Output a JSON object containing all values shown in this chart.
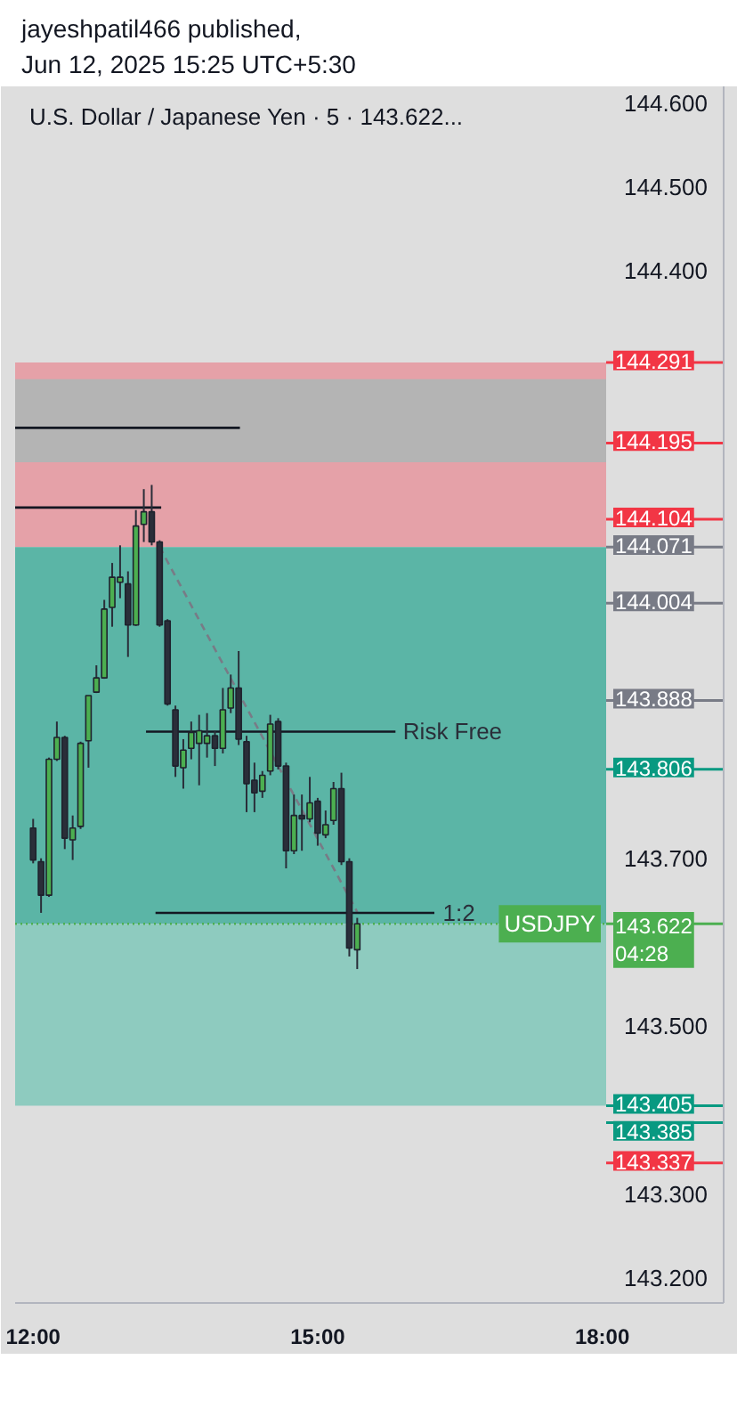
{
  "chart_data": {
    "type": "candlestick",
    "title": "U.S. Dollar / Japanese Yen · 5 · 143.622...",
    "annotations": [
      "jayeshpatil466 published,",
      "Jun 12, 2025 15:25 UTC+5:30",
      {
        "text": "Risk Free",
        "x": 15.9,
        "y": 143.851
      },
      {
        "text": "1:2",
        "x": 16.32,
        "y": 143.635
      }
    ],
    "x": [
      12.0,
      12.0833,
      12.1667,
      12.25,
      12.3333,
      12.4167,
      12.5,
      12.5833,
      12.6667,
      12.75,
      12.8333,
      12.9167,
      13.0,
      13.0833,
      13.1667,
      13.25,
      13.3333,
      13.4167,
      13.5,
      13.5833,
      13.6667,
      13.75,
      13.8333,
      13.9167,
      14.0,
      14.0833,
      14.1667,
      14.25,
      14.3333,
      14.4167,
      14.5,
      14.5833,
      14.6667,
      14.75,
      14.8333,
      14.9167,
      15.0,
      15.0833,
      15.1667,
      15.25,
      15.3333,
      15.4167
    ],
    "ohlc": [
      [
        143.736,
        143.747,
        143.694,
        143.698
      ],
      [
        143.696,
        143.7,
        143.635,
        143.656
      ],
      [
        143.656,
        143.82,
        143.654,
        143.818
      ],
      [
        143.818,
        143.863,
        143.816,
        143.844
      ],
      [
        143.844,
        143.846,
        143.711,
        143.724
      ],
      [
        143.722,
        143.751,
        143.698,
        143.736
      ],
      [
        143.738,
        143.839,
        143.735,
        143.837
      ],
      [
        143.84,
        143.894,
        143.808,
        143.894
      ],
      [
        143.898,
        143.93,
        143.897,
        143.915
      ],
      [
        143.915,
        144.008,
        143.914,
        143.997
      ],
      [
        143.999,
        144.052,
        143.976,
        144.035
      ],
      [
        144.029,
        144.073,
        144.01,
        144.035
      ],
      [
        144.027,
        144.042,
        143.94,
        143.978
      ],
      [
        143.978,
        144.115,
        143.977,
        144.096
      ],
      [
        144.098,
        144.14,
        144.077,
        144.113
      ],
      [
        144.113,
        144.145,
        144.073,
        144.077
      ],
      [
        144.077,
        144.079,
        143.976,
        143.978
      ],
      [
        143.983,
        143.985,
        143.882,
        143.884
      ],
      [
        143.877,
        143.882,
        143.797,
        143.81
      ],
      [
        143.808,
        143.842,
        143.783,
        143.829
      ],
      [
        143.831,
        143.863,
        143.818,
        143.85
      ],
      [
        143.837,
        143.871,
        143.787,
        143.852
      ],
      [
        143.837,
        143.873,
        143.82,
        143.846
      ],
      [
        143.846,
        143.852,
        143.81,
        143.831
      ],
      [
        143.831,
        143.903,
        143.825,
        143.877
      ],
      [
        143.879,
        143.919,
        143.873,
        143.903
      ],
      [
        143.903,
        143.947,
        143.835,
        143.842
      ],
      [
        143.839,
        143.846,
        143.755,
        143.789
      ],
      [
        143.793,
        143.814,
        143.755,
        143.778
      ],
      [
        143.78,
        143.804,
        143.772,
        143.799
      ],
      [
        143.804,
        143.871,
        143.799,
        143.86
      ],
      [
        143.863,
        143.867,
        143.806,
        143.81
      ],
      [
        143.81,
        143.814,
        143.688,
        143.709
      ],
      [
        143.709,
        143.776,
        143.705,
        143.751
      ],
      [
        143.751,
        143.776,
        143.709,
        143.747
      ],
      [
        143.747,
        143.797,
        143.743,
        143.766
      ],
      [
        143.768,
        143.772,
        143.715,
        143.73
      ],
      [
        143.728,
        143.757,
        143.724,
        143.74
      ],
      [
        143.745,
        143.791,
        143.74,
        143.783
      ],
      [
        143.783,
        143.802,
        143.692,
        143.696
      ],
      [
        143.696,
        143.7,
        143.583,
        143.593
      ],
      [
        143.591,
        143.629,
        143.568,
        143.622
      ]
    ],
    "colors": [
      "#2a2e39",
      "#2a2e39",
      "#4caf50",
      "#4caf50",
      "#2a2e39",
      "#4caf50",
      "#4caf50",
      "#4caf50",
      "#4caf50",
      "#4caf50",
      "#4caf50",
      "#4caf50",
      "#2a2e39",
      "#4caf50",
      "#4caf50",
      "#2a2e39",
      "#2a2e39",
      "#2a2e39",
      "#2a2e39",
      "#4caf50",
      "#4caf50",
      "#4caf50",
      "#4caf50",
      "#2a2e39",
      "#4caf50",
      "#4caf50",
      "#2a2e39",
      "#2a2e39",
      "#2a2e39",
      "#4caf50",
      "#4caf50",
      "#2a2e39",
      "#2a2e39",
      "#4caf50",
      "#2a2e39",
      "#4caf50",
      "#2a2e39",
      "#4caf50",
      "#4caf50",
      "#2a2e39",
      "#2a2e39",
      "#4caf50"
    ],
    "series": [
      {
        "type": "line",
        "color": "#131722",
        "x": [
          11.81,
          14.18
        ],
        "values": [
          144.213,
          144.213
        ]
      },
      {
        "type": "line",
        "color": "#131722",
        "x": [
          11.81,
          13.35
        ],
        "values": [
          144.118,
          144.118
        ]
      },
      {
        "type": "line",
        "color": "#787b86",
        "line_style": "dashed",
        "x": [
          13.3333,
          15.4167
        ],
        "values": [
          144.071,
          143.636
        ]
      },
      {
        "type": "line",
        "color": "#131722",
        "x": [
          13.19,
          15.82
        ],
        "values": [
          143.851,
          143.851
        ]
      },
      {
        "type": "line",
        "color": "#131722",
        "x": [
          13.29,
          16.23
        ],
        "values": [
          143.635,
          143.635
        ]
      }
    ],
    "bands": [
      {
        "axis": "y",
        "from": 144.071,
        "to": 144.291,
        "color": "#e5a1a8"
      },
      {
        "axis": "y",
        "from": 143.622,
        "to": 144.071,
        "color": "#5bb5a6"
      },
      {
        "axis": "y",
        "from": 143.405,
        "to": 143.622,
        "color": "#8ecbbf"
      },
      {
        "axis": "y",
        "from": 144.172,
        "to": 144.271,
        "color": "#b4b4b4"
      }
    ],
    "ref_lines": [
      {
        "axis": "y",
        "value": 143.622,
        "label": "USDJPY",
        "color": "#4caf50",
        "line_style": "dotted"
      },
      {
        "axis": "y",
        "value": 144.291,
        "label": "144.291",
        "color": "#f23645"
      },
      {
        "axis": "y",
        "value": 144.195,
        "label": "144.195",
        "color": "#f23645"
      },
      {
        "axis": "y",
        "value": 144.104,
        "label": "144.104",
        "color": "#f23645"
      },
      {
        "axis": "y",
        "value": 144.071,
        "label": "144.071",
        "color": "#787b86"
      },
      {
        "axis": "y",
        "value": 144.004,
        "label": "144.004",
        "color": "#787b86"
      },
      {
        "axis": "y",
        "value": 143.888,
        "label": "143.888",
        "color": "#787b86"
      },
      {
        "axis": "y",
        "value": 143.806,
        "label": "143.806",
        "color": "#089981"
      },
      {
        "axis": "y",
        "value": 143.622,
        "label": "143.622\n04:28",
        "color": "#4caf50"
      },
      {
        "axis": "y",
        "value": 143.405,
        "label": "143.405",
        "color": "#089981"
      },
      {
        "axis": "y",
        "value": 143.385,
        "label": "143.385",
        "color": "#089981"
      },
      {
        "axis": "y",
        "value": 143.337,
        "label": "143.337",
        "color": "#f23645"
      }
    ],
    "xlim": [
      11.81,
      19.28
    ],
    "xticks": [
      {
        "value": 12,
        "label": "12:00"
      },
      {
        "value": 15,
        "label": "15:00"
      },
      {
        "value": 18,
        "label": "18:00"
      }
    ],
    "ylim": [
      143.17,
      144.62
    ],
    "yticks": [
      {
        "value": 144.6,
        "label": "144.600"
      },
      {
        "value": 144.5,
        "label": "144.500"
      },
      {
        "value": 144.4,
        "label": "144.400"
      },
      {
        "value": 143.7,
        "label": "143.700"
      },
      {
        "value": 143.5,
        "label": "143.500"
      },
      {
        "value": 143.3,
        "label": "143.300"
      },
      {
        "value": 143.2,
        "label": "143.200"
      }
    ],
    "grid": false
  }
}
